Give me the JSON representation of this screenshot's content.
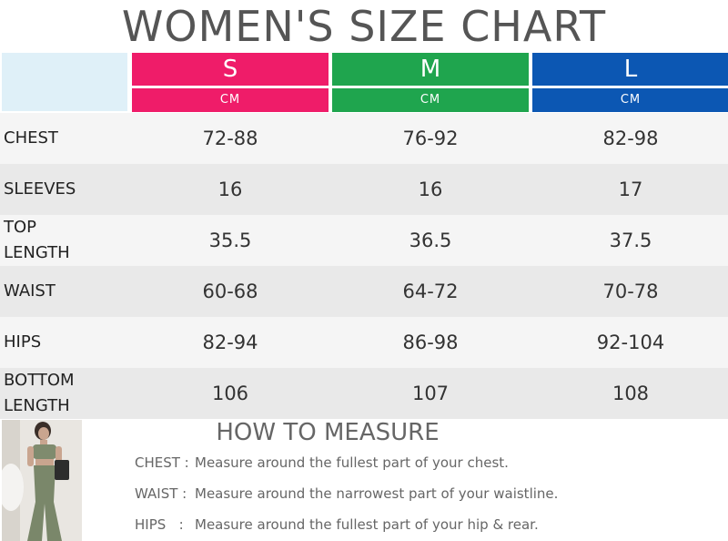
{
  "title": "WOMEN'S SIZE CHART",
  "colors": {
    "s": "#ef1c69",
    "m": "#1fa54e",
    "l": "#0c57b3"
  },
  "sizes": [
    {
      "label": "S",
      "unit": "CM"
    },
    {
      "label": "M",
      "unit": "CM"
    },
    {
      "label": "L",
      "unit": "CM"
    }
  ],
  "rows": [
    {
      "label": "CHEST",
      "values": [
        "72-88",
        "76-92",
        "82-98"
      ]
    },
    {
      "label": "SLEEVES",
      "values": [
        "16",
        "16",
        "17"
      ]
    },
    {
      "label": "TOP LENGTH",
      "values": [
        "35.5",
        "36.5",
        "37.5"
      ]
    },
    {
      "label": "WAIST",
      "values": [
        "60-68",
        "64-72",
        "70-78"
      ]
    },
    {
      "label": "HIPS",
      "values": [
        "82-94",
        "86-98",
        "92-104"
      ]
    },
    {
      "label": "BOTTOM LENGTH",
      "values": [
        "106",
        "107",
        "108"
      ]
    }
  ],
  "how_to_measure": {
    "title": "HOW TO MEASURE",
    "items": [
      {
        "key": "CHEST :",
        "desc": "Measure around the fullest part of your chest."
      },
      {
        "key": "WAIST :",
        "desc": "Measure around the narrowest part of your waistline."
      },
      {
        "key": "HIPS   :",
        "desc": "Measure around the fullest part of your hip & rear."
      }
    ]
  }
}
